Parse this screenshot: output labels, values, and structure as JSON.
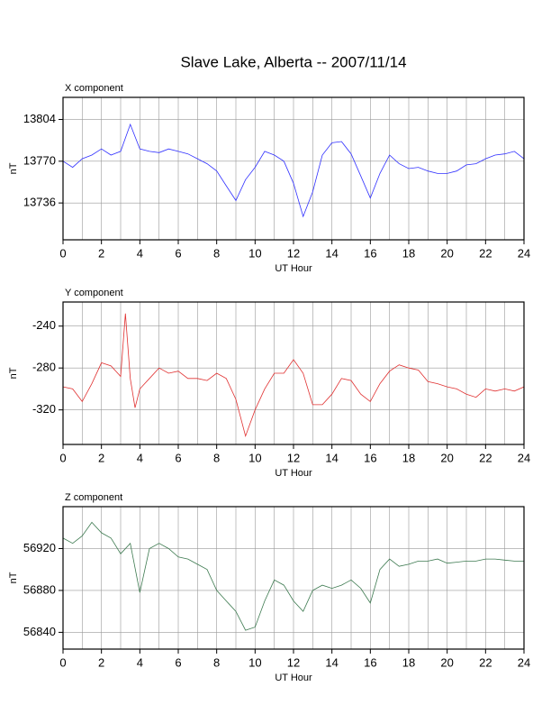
{
  "title": "Slave Lake, Alberta -- 2007/11/14",
  "chart_data": [
    {
      "type": "line",
      "title": "X component",
      "x_label": "UT Hour",
      "y_label": "nT",
      "color": "#3030ff",
      "xlim": [
        0,
        24
      ],
      "xticks": [
        0,
        2,
        4,
        6,
        8,
        10,
        12,
        14,
        16,
        18,
        20,
        22,
        24
      ],
      "ylim": [
        13706,
        13822
      ],
      "yticks": [
        13736,
        13770,
        13804
      ],
      "grid": true,
      "x": [
        0,
        0.5,
        1,
        1.5,
        2,
        2.5,
        3,
        3.5,
        4,
        4.5,
        5,
        5.5,
        6,
        6.5,
        7,
        7.5,
        8,
        8.5,
        9,
        9.5,
        10,
        10.5,
        11,
        11.5,
        12,
        12.5,
        13,
        13.5,
        14,
        14.5,
        15,
        15.5,
        16,
        16.5,
        17,
        17.5,
        18,
        18.5,
        19,
        19.5,
        20,
        20.5,
        21,
        21.5,
        22,
        22.5,
        23,
        23.5,
        24
      ],
      "values": [
        13770,
        13765,
        13772,
        13775,
        13780,
        13775,
        13778,
        13800,
        13780,
        13778,
        13777,
        13780,
        13778,
        13776,
        13772,
        13768,
        13762,
        13750,
        13738,
        13755,
        13765,
        13778,
        13775,
        13770,
        13752,
        13725,
        13745,
        13775,
        13785,
        13786,
        13776,
        13758,
        13740,
        13760,
        13775,
        13768,
        13764,
        13765,
        13762,
        13760,
        13760,
        13762,
        13767,
        13768,
        13772,
        13775,
        13776,
        13778,
        13772
      ]
    },
    {
      "type": "line",
      "title": "Y component",
      "x_label": "UT Hour",
      "y_label": "nT",
      "color": "#e03030",
      "xlim": [
        0,
        24
      ],
      "xticks": [
        0,
        2,
        4,
        6,
        8,
        10,
        12,
        14,
        16,
        18,
        20,
        22,
        24
      ],
      "ylim": [
        -353,
        -217
      ],
      "yticks": [
        -240,
        -280,
        -320
      ],
      "grid": true,
      "x": [
        0,
        0.5,
        1,
        1.5,
        2,
        2.5,
        3,
        3.25,
        3.5,
        3.75,
        4,
        4.5,
        5,
        5.5,
        6,
        6.5,
        7,
        7.5,
        8,
        8.5,
        9,
        9.5,
        10,
        10.5,
        11,
        11.5,
        12,
        12.5,
        13,
        13.5,
        14,
        14.5,
        15,
        15.5,
        16,
        16.5,
        17,
        17.5,
        18,
        18.5,
        19,
        19.5,
        20,
        20.5,
        21,
        21.5,
        22,
        22.5,
        23,
        23.5,
        24
      ],
      "values": [
        -298,
        -300,
        -312,
        -295,
        -275,
        -278,
        -288,
        -228,
        -290,
        -318,
        -300,
        -290,
        -280,
        -285,
        -283,
        -290,
        -290,
        -292,
        -285,
        -290,
        -310,
        -345,
        -320,
        -300,
        -285,
        -285,
        -272,
        -285,
        -315,
        -315,
        -305,
        -290,
        -292,
        -305,
        -312,
        -295,
        -283,
        -277,
        -280,
        -282,
        -293,
        -295,
        -298,
        -300,
        -305,
        -308,
        -300,
        -302,
        -300,
        -302,
        -298
      ]
    },
    {
      "type": "line",
      "title": "Z component",
      "x_label": "UT Hour",
      "y_label": "nT",
      "color": "#3d7a50",
      "xlim": [
        0,
        24
      ],
      "xticks": [
        0,
        2,
        4,
        6,
        8,
        10,
        12,
        14,
        16,
        18,
        20,
        22,
        24
      ],
      "ylim": [
        56824,
        56960
      ],
      "yticks": [
        56840,
        56880,
        56920
      ],
      "grid": true,
      "x": [
        0,
        0.5,
        1,
        1.5,
        2,
        2.5,
        3,
        3.5,
        4,
        4.5,
        5,
        5.5,
        6,
        6.5,
        7,
        7.5,
        8,
        8.5,
        9,
        9.5,
        10,
        10.5,
        11,
        11.5,
        12,
        12.5,
        13,
        13.5,
        14,
        14.5,
        15,
        15.5,
        16,
        16.5,
        17,
        17.5,
        18,
        18.5,
        19,
        19.5,
        20,
        20.5,
        21,
        21.5,
        22,
        22.5,
        23,
        23.5,
        24
      ],
      "values": [
        56930,
        56925,
        56932,
        56945,
        56935,
        56930,
        56915,
        56925,
        56878,
        56920,
        56925,
        56920,
        56912,
        56910,
        56905,
        56900,
        56880,
        56870,
        56860,
        56842,
        56845,
        56870,
        56890,
        56885,
        56870,
        56860,
        56880,
        56885,
        56882,
        56885,
        56890,
        56882,
        56868,
        56900,
        56910,
        56903,
        56905,
        56908,
        56908,
        56910,
        56906,
        56907,
        56908,
        56908,
        56910,
        56910,
        56909,
        56908,
        56908
      ]
    }
  ]
}
